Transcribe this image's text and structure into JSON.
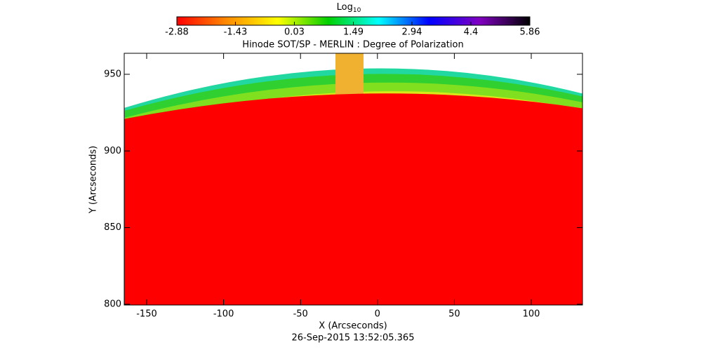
{
  "chart_data": {
    "type": "image",
    "title": "Hinode SOT/SP - MERLIN : Degree of Polarization",
    "x_label": "X (Arcseconds)",
    "y_label": "Y (Arcseconds)",
    "footer": "26-Sep-2015 13:52:05.365",
    "xlim": [
      -164.6,
      133.3
    ],
    "xticks": [
      -150,
      -100,
      -50,
      0,
      50,
      100
    ],
    "ylim": [
      799.5,
      963.7
    ],
    "yticks": [
      800,
      850,
      900,
      950
    ],
    "colorbar": {
      "label": "Log",
      "label_sub": "10",
      "lim": [
        -2.88,
        5.86
      ],
      "ticks": [
        -2.88,
        -1.43,
        0.03,
        1.49,
        2.94,
        4.4,
        5.86
      ],
      "colormap": [
        "#ff0000",
        "#ff8c00",
        "#ffff00",
        "#00d000",
        "#00ffff",
        "#0000ff",
        "#8000c0",
        "#000000"
      ]
    }
  }
}
